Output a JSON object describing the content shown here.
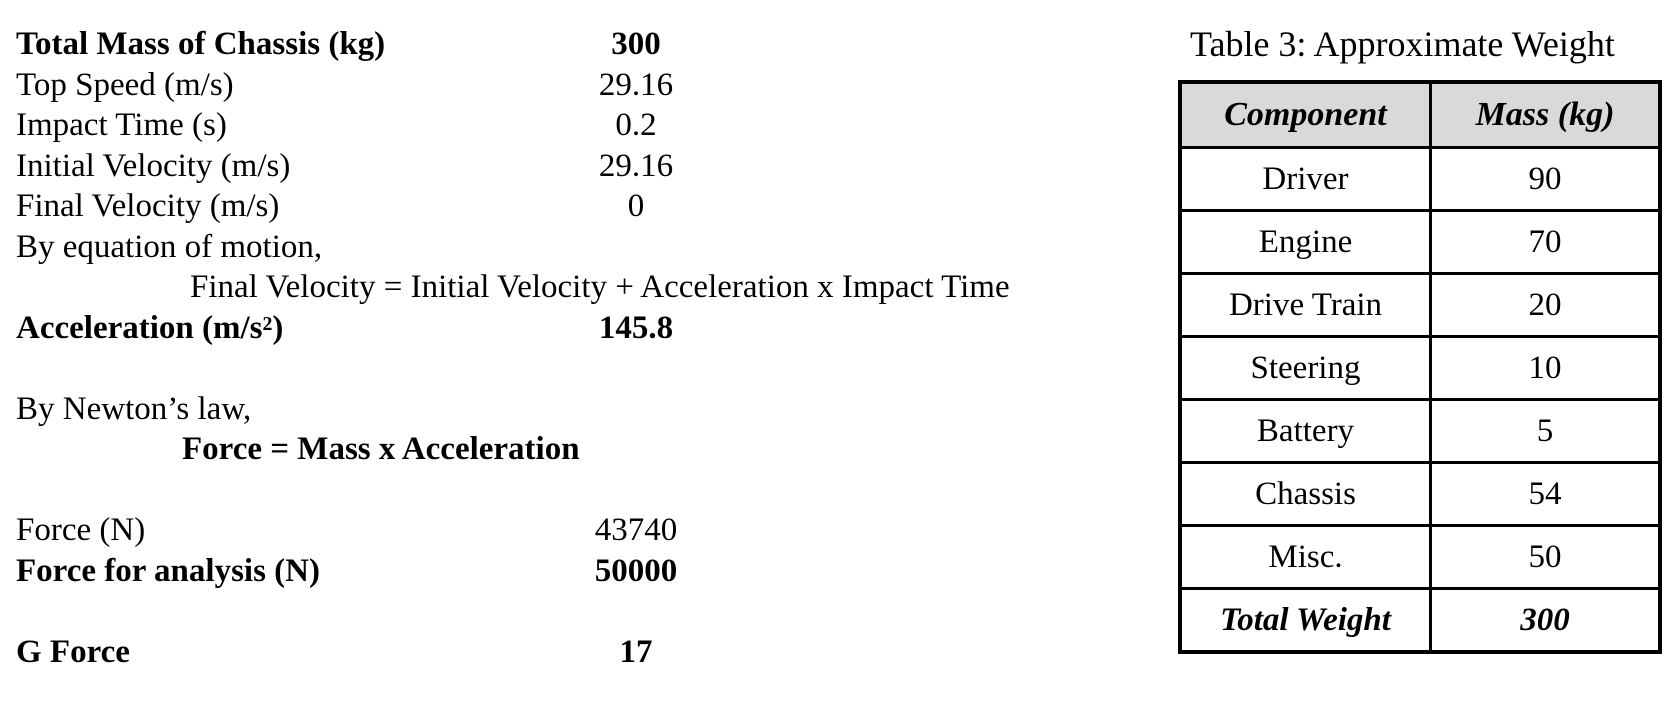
{
  "calc": {
    "total_mass_label": "Total Mass of Chassis (kg)",
    "total_mass_value": "300",
    "top_speed_label": "Top Speed (m/s)",
    "top_speed_value": "29.16",
    "impact_time_label": "Impact Time (s)",
    "impact_time_value": "0.2",
    "initial_velocity_label": "Initial Velocity (m/s)",
    "initial_velocity_value": "29.16",
    "final_velocity_label": "Final Velocity (m/s)",
    "final_velocity_value": "0",
    "motion_intro": "By equation of motion,",
    "motion_equation": "Final Velocity = Initial Velocity + Acceleration x Impact Time",
    "acceleration_label": "Acceleration (m/s",
    "acceleration_sup": "2",
    "acceleration_label_end": ")",
    "acceleration_value": "145.8",
    "newton_intro": "By Newton’s law,",
    "newton_equation": "Force = Mass x Acceleration",
    "force_label": "Force (N)",
    "force_value": "43740",
    "force_analysis_label": "Force for analysis (N)",
    "force_analysis_value": "50000",
    "g_force_label": "G Force",
    "g_force_value": "17"
  },
  "table": {
    "caption": "Table 3: Approximate Weight",
    "headers": [
      "Component",
      "Mass (kg)"
    ],
    "rows": [
      [
        "Driver",
        "90"
      ],
      [
        "Engine",
        "70"
      ],
      [
        "Drive Train",
        "20"
      ],
      [
        "Steering",
        "10"
      ],
      [
        "Battery",
        "5"
      ],
      [
        "Chassis",
        "54"
      ],
      [
        "Misc.",
        "50"
      ]
    ],
    "total": [
      "Total Weight",
      "300"
    ]
  }
}
